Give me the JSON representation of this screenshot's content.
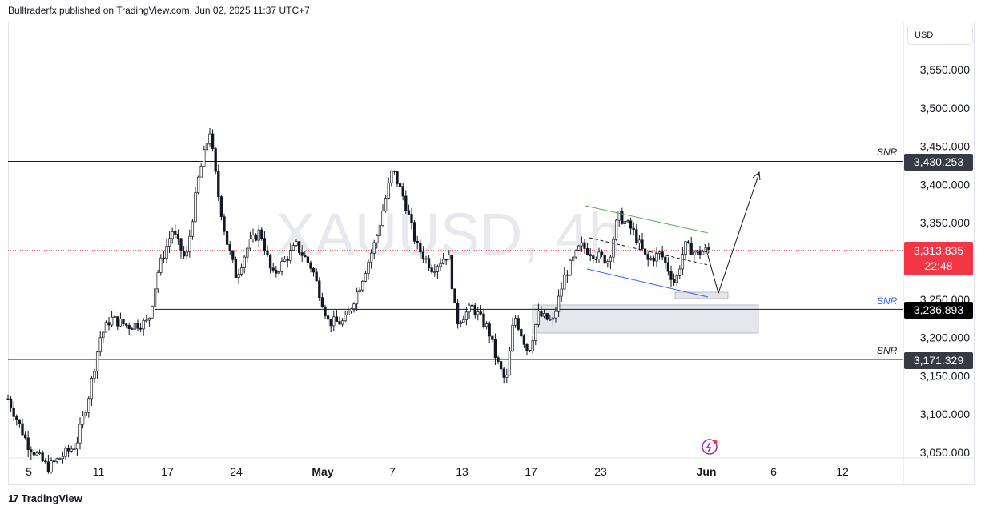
{
  "header": {
    "publisher_text": "Bulltraderfx published on TradingView.com, Jun 02, 2025 11:37 UTC+7"
  },
  "footer": {
    "brand": "TradingView",
    "logo_glyph": "17"
  },
  "watermark": {
    "text": "XAUUSD, 4h"
  },
  "price_axis": {
    "currency": "USD"
  },
  "colors": {
    "up": "#131722",
    "down": "#131722",
    "support_green": "#4caf50",
    "support_blue": "#2962ff",
    "current_price_bg": "#f23645",
    "level_bg": "#131722",
    "zone_fill": "#d1d4dc"
  },
  "labels": {
    "snr_top": "SNR",
    "snr_mid": "SNR",
    "snr_bottom": "SNR",
    "level_top": "3,430.253",
    "level_current": "3,313.835",
    "countdown": "22:48",
    "level_mid": "3,236.893",
    "level_bottom": "3,171.329"
  },
  "chart_data": {
    "type": "line",
    "symbol": "XAUUSD",
    "timeframe": "4h",
    "y_ticks": [
      "3,550.000",
      "3,500.000",
      "3,450.000",
      "3,400.000",
      "3,350.000",
      "3,300.000",
      "3,250.000",
      "3,200.000",
      "3,150.000",
      "3,100.000",
      "3,050.000"
    ],
    "y_tick_values": [
      3550,
      3500,
      3450,
      3400,
      3350,
      3300,
      3250,
      3200,
      3150,
      3100,
      3050
    ],
    "x_ticks": [
      "5",
      "11",
      "17",
      "24",
      "May",
      "7",
      "13",
      "17",
      "23",
      "Jun",
      "6",
      "12"
    ],
    "ylim": [
      3040,
      3580
    ],
    "levels": [
      {
        "name": "SNR",
        "price": 3430.253
      },
      {
        "name": "SNR",
        "price": 3236.893
      },
      {
        "name": "SNR",
        "price": 3171.329
      },
      {
        "name": "current",
        "price": 3313.835
      }
    ],
    "series": [
      {
        "x": [
          "Apr 4",
          "Apr 7",
          "Apr 9",
          "Apr 10",
          "Apr 11",
          "Apr 14",
          "Apr 15",
          "Apr 16",
          "Apr 17",
          "Apr 18",
          "Apr 21",
          "Apr 22",
          "Apr 23",
          "Apr 24",
          "Apr 25",
          "Apr 28",
          "Apr 29",
          "Apr 30",
          "May 1",
          "May 2",
          "May 5",
          "May 6",
          "May 7",
          "May 8",
          "May 9",
          "May 12",
          "May 13",
          "May 14",
          "May 15",
          "May 16",
          "May 19",
          "May 20",
          "May 21",
          "May 22",
          "May 23",
          "May 26",
          "May 27",
          "May 28",
          "May 29",
          "May 30",
          "Jun 2"
        ],
        "values": [
          3110,
          3040,
          3050,
          3170,
          3230,
          3220,
          3240,
          3320,
          3340,
          3330,
          3420,
          3480,
          3300,
          3330,
          3320,
          3340,
          3310,
          3300,
          3240,
          3220,
          3290,
          3380,
          3420,
          3360,
          3320,
          3240,
          3220,
          3230,
          3170,
          3200,
          3230,
          3290,
          3330,
          3310,
          3360,
          3330,
          3300,
          3290,
          3280,
          3300,
          3314
        ]
      }
    ]
  }
}
